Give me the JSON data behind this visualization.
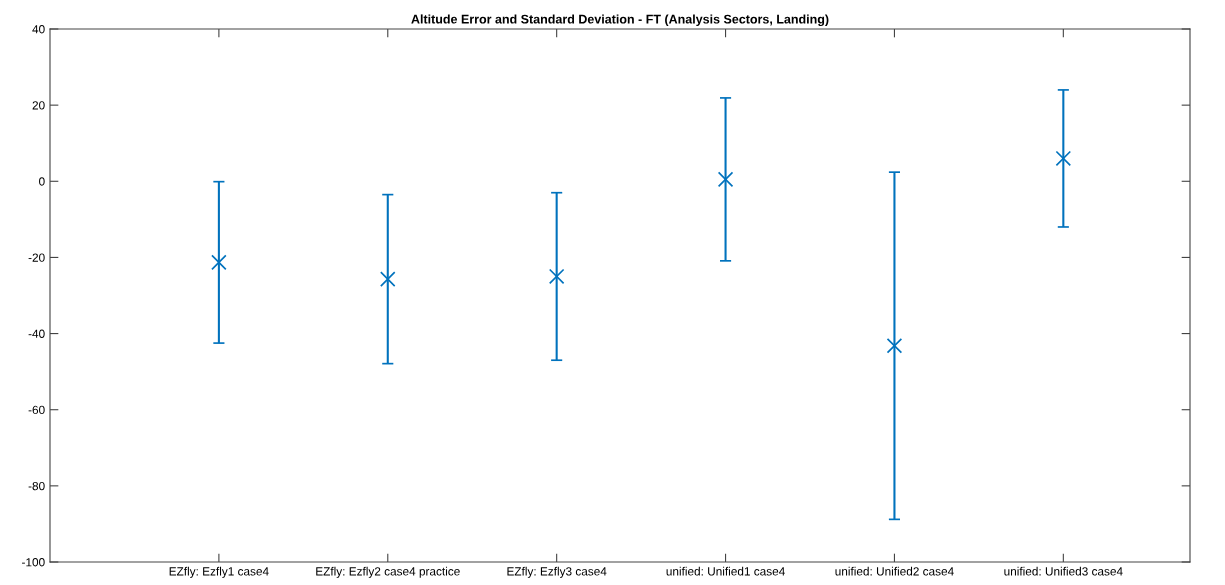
{
  "chart_data": {
    "type": "scatter",
    "title": "Altitude Error and Standard Deviation - FT (Analysis Sectors, Landing)",
    "categories": [
      "EZfly: Ezfly1 case4",
      "EZfly: Ezfly2 case4 practice",
      "EZfly: Ezfly3 case4",
      "unified: Unified1 case4",
      "unified: Unified2 case4",
      "unified: Unified3 case4"
    ],
    "values": [
      -21.3,
      -25.7,
      -25.0,
      0.5,
      -43.2,
      6.0
    ],
    "errors": [
      21.2,
      22.2,
      22.0,
      21.4,
      45.6,
      18.0
    ],
    "color": "#0072bd",
    "marker": "cross",
    "ylim": [
      -100,
      40
    ],
    "yticks": [
      -100,
      -80,
      -60,
      -40,
      -20,
      0,
      20,
      40
    ],
    "grid": false,
    "legend": false
  }
}
